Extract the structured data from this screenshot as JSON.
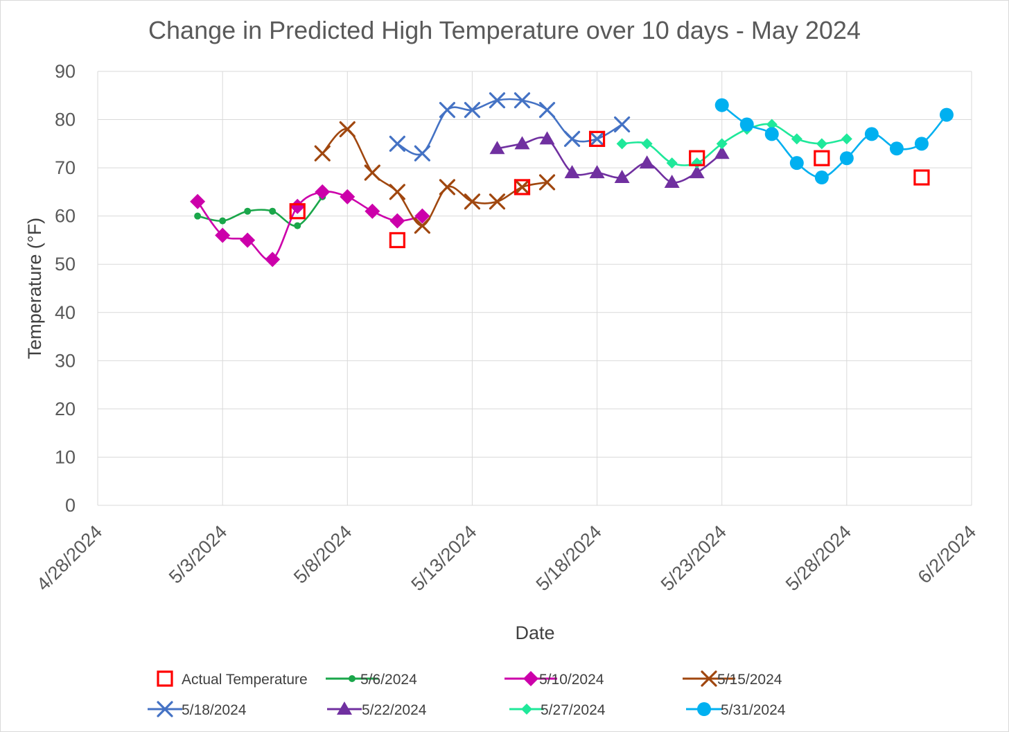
{
  "chart_data": {
    "type": "scatter",
    "title": "Change in Predicted High Temperature over 10 days - May 2024",
    "xlabel": "Date",
    "ylabel": "Temperature (°F)",
    "xlim": [
      "4/28/2024",
      "6/2/2024"
    ],
    "ylim": [
      0,
      90
    ],
    "x_ticks": [
      "4/28/2024",
      "5/3/2024",
      "5/8/2024",
      "5/13/2024",
      "5/18/2024",
      "5/23/2024",
      "5/28/2024",
      "6/2/2024"
    ],
    "y_ticks": [
      0,
      10,
      20,
      30,
      40,
      50,
      60,
      70,
      80,
      90
    ],
    "grid": true,
    "legend_position": "bottom",
    "series": [
      {
        "name": "Actual Temperature",
        "color": "#ff0000",
        "marker": "hollow-square",
        "line": false,
        "points": [
          [
            "5/6/2024",
            61
          ],
          [
            "5/10/2024",
            55
          ],
          [
            "5/15/2024",
            66
          ],
          [
            "5/18/2024",
            76
          ],
          [
            "5/22/2024",
            72
          ],
          [
            "5/27/2024",
            72
          ],
          [
            "5/31/2024",
            68
          ]
        ]
      },
      {
        "name": "5/6/2024",
        "color": "#1aa64a",
        "marker": "circle-small",
        "line": true,
        "points": [
          [
            "5/2/2024",
            60
          ],
          [
            "5/3/2024",
            59
          ],
          [
            "5/4/2024",
            61
          ],
          [
            "5/5/2024",
            61
          ],
          [
            "5/6/2024",
            58
          ],
          [
            "5/7/2024",
            64
          ]
        ]
      },
      {
        "name": "5/10/2024",
        "color": "#cc00aa",
        "marker": "diamond",
        "line": true,
        "points": [
          [
            "5/2/2024",
            63
          ],
          [
            "5/3/2024",
            56
          ],
          [
            "5/4/2024",
            55
          ],
          [
            "5/5/2024",
            51
          ],
          [
            "5/6/2024",
            62
          ],
          [
            "5/7/2024",
            65
          ],
          [
            "5/8/2024",
            64
          ],
          [
            "5/9/2024",
            61
          ],
          [
            "5/10/2024",
            59
          ],
          [
            "5/11/2024",
            60
          ]
        ]
      },
      {
        "name": "5/15/2024",
        "color": "#a0470f",
        "marker": "x",
        "line": true,
        "points": [
          [
            "5/7/2024",
            73
          ],
          [
            "5/8/2024",
            78
          ],
          [
            "5/9/2024",
            69
          ],
          [
            "5/10/2024",
            65
          ],
          [
            "5/11/2024",
            58
          ],
          [
            "5/12/2024",
            66
          ],
          [
            "5/13/2024",
            63
          ],
          [
            "5/14/2024",
            63
          ],
          [
            "5/15/2024",
            66
          ],
          [
            "5/16/2024",
            67
          ]
        ]
      },
      {
        "name": "5/18/2024",
        "color": "#4472c4",
        "marker": "x",
        "line": true,
        "points": [
          [
            "5/10/2024",
            75
          ],
          [
            "5/11/2024",
            73
          ],
          [
            "5/12/2024",
            82
          ],
          [
            "5/13/2024",
            82
          ],
          [
            "5/14/2024",
            84
          ],
          [
            "5/15/2024",
            84
          ],
          [
            "5/16/2024",
            82
          ],
          [
            "5/17/2024",
            76
          ],
          [
            "5/18/2024",
            76
          ],
          [
            "5/19/2024",
            79
          ]
        ]
      },
      {
        "name": "5/22/2024",
        "color": "#7030a0",
        "marker": "triangle",
        "line": true,
        "points": [
          [
            "5/14/2024",
            74
          ],
          [
            "5/15/2024",
            75
          ],
          [
            "5/16/2024",
            76
          ],
          [
            "5/17/2024",
            69
          ],
          [
            "5/18/2024",
            69
          ],
          [
            "5/19/2024",
            68
          ],
          [
            "5/20/2024",
            71
          ],
          [
            "5/21/2024",
            67
          ],
          [
            "5/22/2024",
            69
          ],
          [
            "5/23/2024",
            73
          ]
        ]
      },
      {
        "name": "5/27/2024",
        "color": "#1fe89a",
        "marker": "diamond-small",
        "line": true,
        "points": [
          [
            "5/19/2024",
            75
          ],
          [
            "5/20/2024",
            75
          ],
          [
            "5/21/2024",
            71
          ],
          [
            "5/22/2024",
            71
          ],
          [
            "5/23/2024",
            75
          ],
          [
            "5/24/2024",
            78
          ],
          [
            "5/25/2024",
            79
          ],
          [
            "5/26/2024",
            76
          ],
          [
            "5/27/2024",
            75
          ],
          [
            "5/28/2024",
            76
          ]
        ]
      },
      {
        "name": "5/31/2024",
        "color": "#00b0f0",
        "marker": "circle",
        "line": true,
        "points": [
          [
            "5/23/2024",
            83
          ],
          [
            "5/24/2024",
            79
          ],
          [
            "5/25/2024",
            77
          ],
          [
            "5/26/2024",
            71
          ],
          [
            "5/27/2024",
            68
          ],
          [
            "5/28/2024",
            72
          ],
          [
            "5/29/2024",
            77
          ],
          [
            "5/30/2024",
            74
          ],
          [
            "5/31/2024",
            75
          ],
          [
            "6/1/2024",
            81
          ]
        ]
      }
    ]
  }
}
